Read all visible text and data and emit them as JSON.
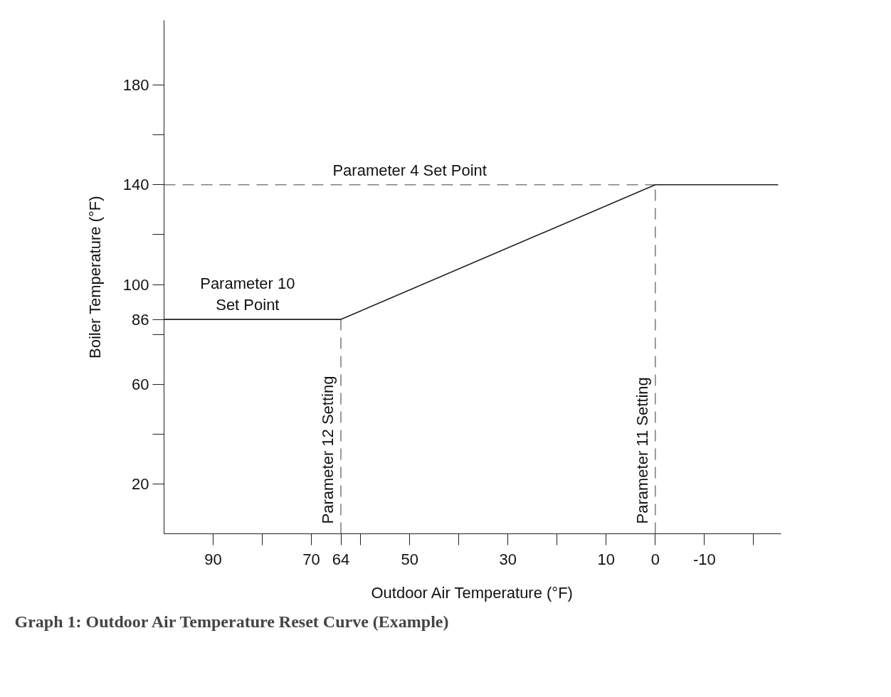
{
  "chart_data": {
    "type": "line",
    "title": "Graph 1: Outdoor Air Temperature Reset Curve (Example)",
    "xlabel": "Outdoor Air Temperature (°F)",
    "ylabel": "Boiler Temperature (°F)",
    "xlim": [
      100,
      -25.6
    ],
    "ylim": [
      0,
      206
    ],
    "xticks": [
      90,
      {
        "value": 80,
        "label": null
      },
      70,
      64,
      {
        "value": 60,
        "label": null
      },
      50,
      {
        "value": 40,
        "label": null
      },
      30,
      {
        "value": 20,
        "label": null
      },
      10,
      0,
      -10,
      {
        "value": -20,
        "label": null
      }
    ],
    "yticks": [
      20,
      {
        "value": 40,
        "label": null
      },
      60,
      {
        "value": 80,
        "label": null
      },
      86,
      100,
      {
        "value": 120,
        "label": null
      },
      140,
      {
        "value": 160,
        "label": null
      },
      180
    ],
    "grid": false,
    "series": [
      {
        "line_style": "dashed",
        "color": "#808080",
        "x": [
          100,
          0
        ],
        "values": [
          140,
          140
        ]
      },
      {
        "line_style": "dashed",
        "color": "#808080",
        "x": [
          64,
          64
        ],
        "values": [
          0,
          86
        ]
      },
      {
        "line_style": "dashed",
        "color": "#808080",
        "x": [
          0,
          0
        ],
        "values": [
          0,
          140
        ]
      },
      {
        "line_style": "solid",
        "color": "#231f20",
        "x": [
          100,
          64,
          0,
          -25
        ],
        "values": [
          86,
          86,
          140,
          140
        ]
      }
    ],
    "annotations": [
      {
        "text": "Parameter 4 Set Point",
        "x": 50,
        "y": 140
      },
      {
        "text": "Parameter 10\nSet Point",
        "x": 83,
        "y": 86
      },
      {
        "text": "Parameter 12 Setting",
        "x": 64,
        "y": 4
      },
      {
        "text": "Parameter 11 Setting",
        "x": 0,
        "y": 4
      }
    ]
  }
}
